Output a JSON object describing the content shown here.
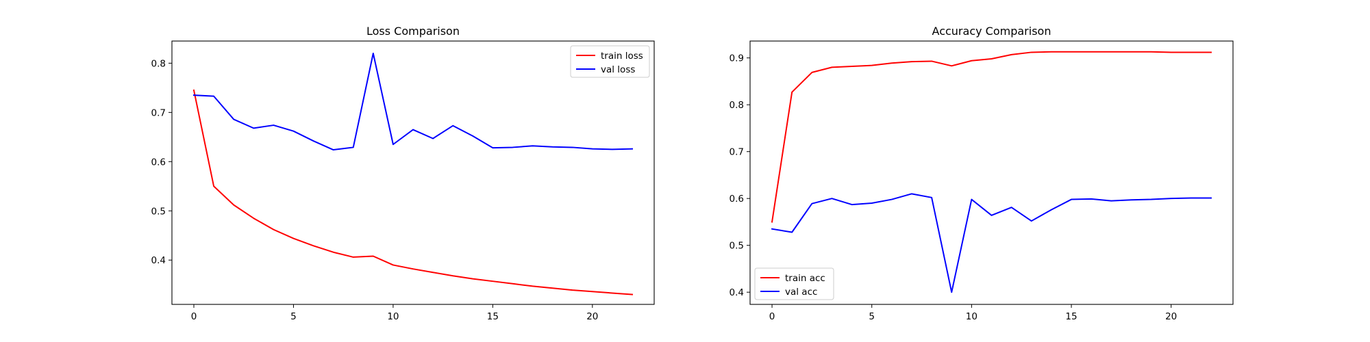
{
  "chart_data": [
    {
      "type": "line",
      "title": "Loss Comparison",
      "xlabel": "",
      "ylabel": "",
      "xlim": [
        -1.1,
        23.1
      ],
      "ylim": [
        0.31,
        0.845
      ],
      "xticks": [
        0,
        5,
        10,
        15,
        20
      ],
      "yticks": [
        0.4,
        0.5,
        0.6,
        0.7,
        0.8
      ],
      "ytick_labels": [
        "0.4",
        "0.5",
        "0.6",
        "0.7",
        "0.8"
      ],
      "grid": false,
      "legend_position": "upper right",
      "x": [
        0,
        1,
        2,
        3,
        4,
        5,
        6,
        7,
        8,
        9,
        10,
        11,
        12,
        13,
        14,
        15,
        16,
        17,
        18,
        19,
        20,
        21,
        22
      ],
      "series": [
        {
          "name": "train loss",
          "color": "#ff0000",
          "values": [
            0.745,
            0.55,
            0.512,
            0.485,
            0.462,
            0.444,
            0.429,
            0.416,
            0.406,
            0.408,
            0.39,
            0.382,
            0.375,
            0.368,
            0.362,
            0.357,
            0.352,
            0.347,
            0.343,
            0.339,
            0.336,
            0.333,
            0.33
          ]
        },
        {
          "name": "val loss",
          "color": "#0000ff",
          "values": [
            0.735,
            0.733,
            0.686,
            0.668,
            0.674,
            0.662,
            0.642,
            0.624,
            0.629,
            0.82,
            0.635,
            0.665,
            0.647,
            0.673,
            0.652,
            0.628,
            0.629,
            0.632,
            0.63,
            0.629,
            0.626,
            0.625,
            0.626
          ]
        }
      ]
    },
    {
      "type": "line",
      "title": "Accuracy Comparison",
      "xlabel": "",
      "ylabel": "",
      "xlim": [
        -1.1,
        23.1
      ],
      "ylim": [
        0.374,
        0.936
      ],
      "xticks": [
        0,
        5,
        10,
        15,
        20
      ],
      "yticks": [
        0.4,
        0.5,
        0.6,
        0.7,
        0.8,
        0.9
      ],
      "ytick_labels": [
        "0.4",
        "0.5",
        "0.6",
        "0.7",
        "0.8",
        "0.9"
      ],
      "grid": false,
      "legend_position": "lower left",
      "x": [
        0,
        1,
        2,
        3,
        4,
        5,
        6,
        7,
        8,
        9,
        10,
        11,
        12,
        13,
        14,
        15,
        16,
        17,
        18,
        19,
        20,
        21,
        22
      ],
      "series": [
        {
          "name": "train acc",
          "color": "#ff0000",
          "values": [
            0.55,
            0.827,
            0.869,
            0.88,
            0.882,
            0.884,
            0.889,
            0.892,
            0.893,
            0.883,
            0.894,
            0.898,
            0.907,
            0.912,
            0.913,
            0.913,
            0.913,
            0.913,
            0.913,
            0.913,
            0.912,
            0.912,
            0.912
          ]
        },
        {
          "name": "val acc",
          "color": "#0000ff",
          "values": [
            0.535,
            0.528,
            0.589,
            0.6,
            0.587,
            0.59,
            0.598,
            0.61,
            0.602,
            0.4,
            0.598,
            0.564,
            0.581,
            0.552,
            0.576,
            0.598,
            0.599,
            0.595,
            0.597,
            0.598,
            0.6,
            0.601,
            0.601
          ]
        }
      ]
    }
  ]
}
